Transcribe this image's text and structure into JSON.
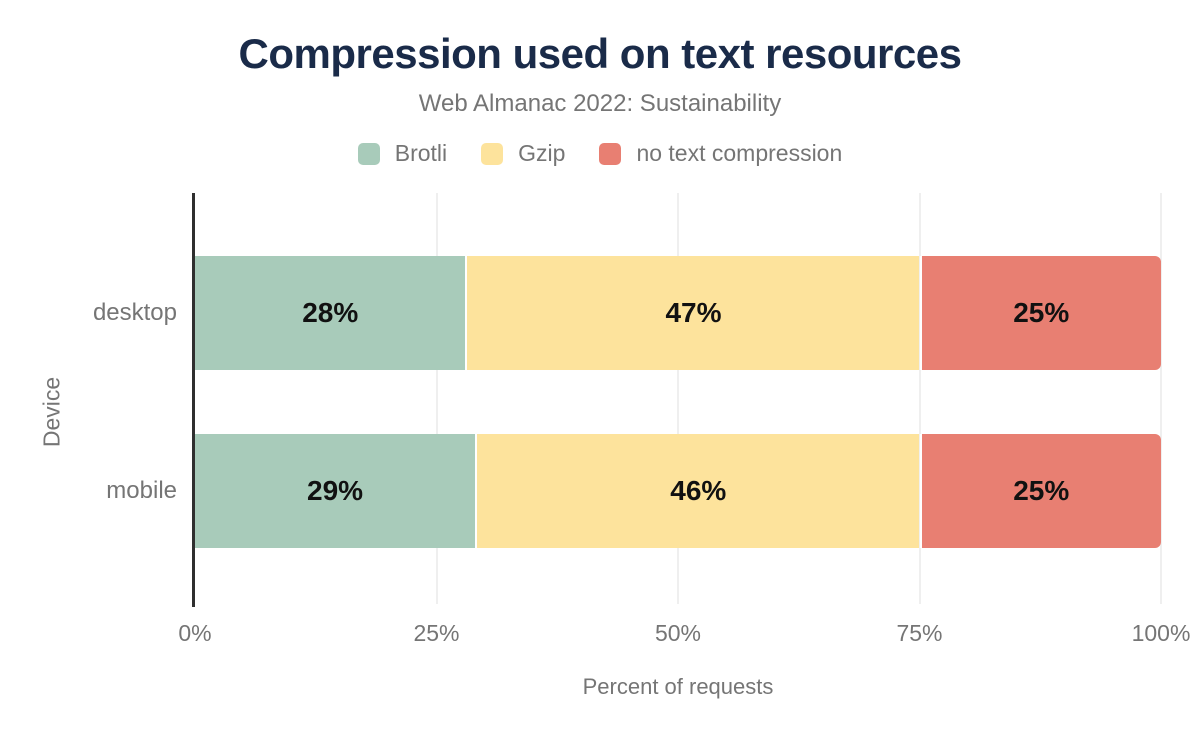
{
  "header": {
    "title": "Compression used on text resources",
    "subtitle": "Web Almanac 2022: Sustainability"
  },
  "chart_data": {
    "type": "bar",
    "orientation": "horizontal",
    "stacked": true,
    "categories": [
      "desktop",
      "mobile"
    ],
    "series": [
      {
        "name": "Brotli",
        "color": "#a8cbba",
        "values": [
          28,
          29
        ]
      },
      {
        "name": "Gzip",
        "color": "#fde39c",
        "values": [
          47,
          46
        ]
      },
      {
        "name": "no text compression",
        "color": "#e87f72",
        "values": [
          25,
          25
        ]
      }
    ],
    "data_label_format": "{value}%",
    "xlabel": "Percent of requests",
    "ylabel": "Device",
    "xlim": [
      0,
      100
    ],
    "x_ticks": [
      0,
      25,
      50,
      75,
      100
    ],
    "x_tick_labels": [
      "0%",
      "25%",
      "50%",
      "75%",
      "100%"
    ],
    "grid": "vertical",
    "legend_position": "top"
  },
  "colors": {
    "title": "#1a2b49",
    "muted_text": "#757575",
    "data_label": "#111111",
    "gridline": "#efefef",
    "axis_line": "#2f2f2f",
    "background": "#ffffff"
  }
}
